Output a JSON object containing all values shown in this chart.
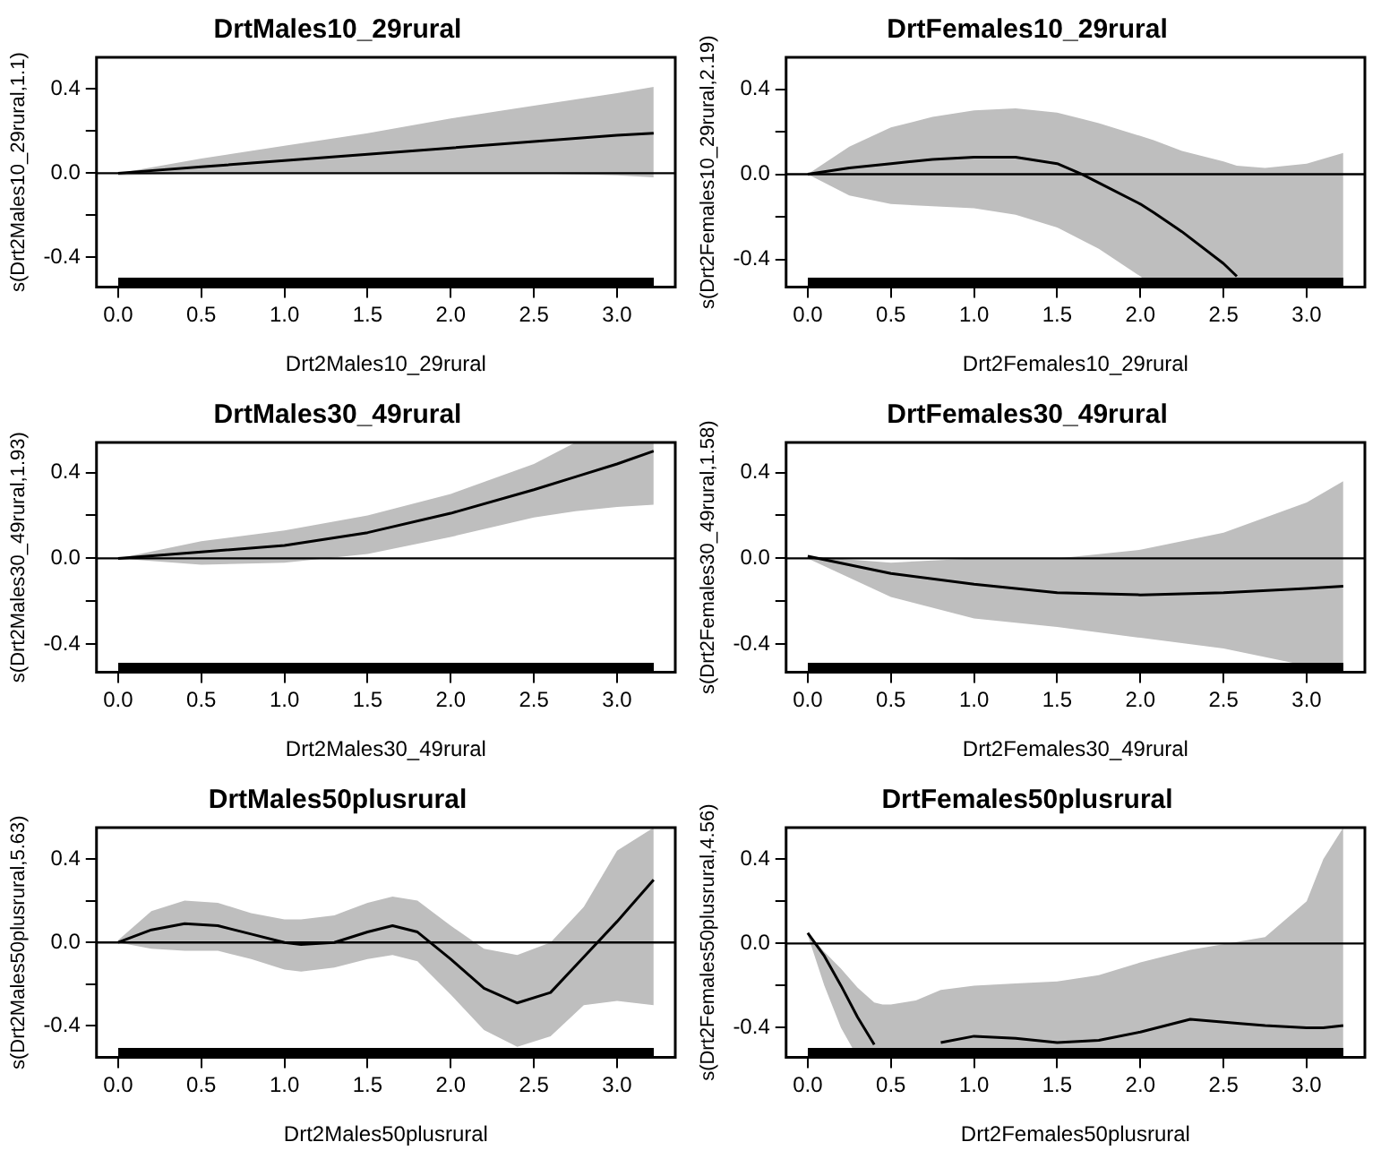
{
  "chart_data": [
    {
      "type": "line",
      "title": "DrtMales10_29rural",
      "xlabel": "Drt2Males10_29rural",
      "ylabel": "s(Drt2Males10_29rural,1.1)",
      "x": [
        0,
        0.5,
        1,
        1.5,
        2,
        2.5,
        3,
        3.22
      ],
      "series": [
        {
          "color": "#000000",
          "values": [
            0,
            0.03,
            0.06,
            0.09,
            0.12,
            0.15,
            0.18,
            0.19
          ],
          "upper": [
            0,
            0.07,
            0.13,
            0.19,
            0.26,
            0.32,
            0.38,
            0.41
          ],
          "lower": [
            -0.01,
            0,
            0,
            0,
            0,
            0,
            -0.01,
            -0.02
          ]
        }
      ],
      "xlim": [
        -0.13,
        3.35
      ],
      "ylim": [
        -0.54,
        0.55
      ],
      "xticks": [
        {
          "value": 0,
          "label": "0.0"
        },
        0.5,
        {
          "value": 1,
          "label": "1.0"
        },
        1.5,
        {
          "value": 2,
          "label": "2.0"
        },
        2.5,
        {
          "value": 3,
          "label": "3.0"
        }
      ],
      "yticks": [
        {
          "value": -0.4,
          "label": "-0.4"
        },
        {
          "value": -0.2,
          "label": null
        },
        {
          "value": 0,
          "label": "0.0"
        },
        {
          "value": 0.2,
          "label": null
        },
        {
          "value": 0.4,
          "label": "0.4"
        }
      ],
      "ref_lines": [
        {
          "axis": "y",
          "value": 0,
          "color": "#000000"
        }
      ],
      "grid": false,
      "legend": false,
      "marker": "none",
      "line_style": "solid"
    },
    {
      "type": "line",
      "title": "DrtFemales10_29rural",
      "xlabel": "Drt2Females10_29rural",
      "ylabel": "s(Drt2Females10_29rural,2.19)",
      "x": [
        0,
        0.25,
        0.5,
        0.75,
        1,
        1.25,
        1.5,
        1.65,
        1.75,
        2,
        2.08,
        2.25,
        2.5,
        2.58,
        2.75,
        3,
        3.22
      ],
      "series": [
        {
          "color": "#000000",
          "values": [
            0,
            0.03,
            0.05,
            0.07,
            0.08,
            0.08,
            0.05,
            0,
            -0.04,
            -0.14,
            -0.18,
            -0.27,
            -0.42,
            -0.48,
            null,
            null,
            null
          ],
          "upper": [
            0,
            0.13,
            0.22,
            0.27,
            0.3,
            0.31,
            0.29,
            0.26,
            0.24,
            0.18,
            0.16,
            0.11,
            0.06,
            0.04,
            0.03,
            0.05,
            0.1
          ],
          "lower": [
            0,
            -0.1,
            -0.14,
            -0.15,
            -0.16,
            -0.19,
            -0.25,
            -0.31,
            -0.35,
            -0.48,
            -0.53,
            -0.53,
            -0.53,
            -0.53,
            -0.53,
            -0.53,
            -0.53
          ]
        }
      ],
      "xlim": [
        -0.13,
        3.35
      ],
      "ylim": [
        -0.53,
        0.55
      ],
      "xticks": [
        {
          "value": 0,
          "label": "0.0"
        },
        0.5,
        {
          "value": 1,
          "label": "1.0"
        },
        1.5,
        {
          "value": 2,
          "label": "2.0"
        },
        2.5,
        {
          "value": 3,
          "label": "3.0"
        }
      ],
      "yticks": [
        {
          "value": -0.4,
          "label": "-0.4"
        },
        {
          "value": -0.2,
          "label": null
        },
        {
          "value": 0,
          "label": "0.0"
        },
        {
          "value": 0.2,
          "label": null
        },
        {
          "value": 0.4,
          "label": "0.4"
        }
      ],
      "ref_lines": [
        {
          "axis": "y",
          "value": 0,
          "color": "#000000"
        }
      ],
      "grid": false,
      "legend": false,
      "marker": "none",
      "line_style": "solid"
    },
    {
      "type": "line",
      "title": "DrtMales30_49rural",
      "xlabel": "Drt2Males30_49rural",
      "ylabel": "s(Drt2Males30_49rural,1.93)",
      "x": [
        0,
        0.5,
        1,
        1.5,
        2,
        2.5,
        2.75,
        3,
        3.22
      ],
      "series": [
        {
          "color": "#000000",
          "values": [
            0,
            0.03,
            0.06,
            0.12,
            0.21,
            0.32,
            0.38,
            0.44,
            0.5
          ],
          "upper": [
            0,
            0.08,
            0.13,
            0.2,
            0.3,
            0.44,
            0.54,
            0.54,
            0.54
          ],
          "lower": [
            0,
            -0.03,
            -0.02,
            0.02,
            0.1,
            0.19,
            0.22,
            0.24,
            0.25
          ]
        }
      ],
      "xlim": [
        -0.13,
        3.35
      ],
      "ylim": [
        -0.53,
        0.54
      ],
      "xticks": [
        {
          "value": 0,
          "label": "0.0"
        },
        0.5,
        {
          "value": 1,
          "label": "1.0"
        },
        1.5,
        {
          "value": 2,
          "label": "2.0"
        },
        2.5,
        {
          "value": 3,
          "label": "3.0"
        }
      ],
      "yticks": [
        {
          "value": -0.4,
          "label": "-0.4"
        },
        {
          "value": -0.2,
          "label": null
        },
        {
          "value": 0,
          "label": "0.0"
        },
        {
          "value": 0.2,
          "label": null
        },
        {
          "value": 0.4,
          "label": "0.4"
        }
      ],
      "ref_lines": [
        {
          "axis": "y",
          "value": 0,
          "color": "#000000"
        }
      ],
      "grid": false,
      "legend": false,
      "marker": "none",
      "line_style": "solid"
    },
    {
      "type": "line",
      "title": "DrtFemales30_49rural",
      "xlabel": "Drt2Females30_49rural",
      "ylabel": "s(Drt2Females30_49rural,1.58)",
      "x": [
        0,
        0.5,
        1,
        1.5,
        2,
        2.5,
        3,
        3.22
      ],
      "series": [
        {
          "color": "#000000",
          "values": [
            0.01,
            -0.07,
            -0.12,
            -0.16,
            -0.17,
            -0.16,
            -0.14,
            -0.13
          ],
          "upper": [
            0.01,
            -0.02,
            0,
            0,
            0.04,
            0.12,
            0.26,
            0.36
          ],
          "lower": [
            0,
            -0.18,
            -0.28,
            -0.32,
            -0.37,
            -0.42,
            -0.5,
            -0.53
          ]
        }
      ],
      "xlim": [
        -0.13,
        3.35
      ],
      "ylim": [
        -0.53,
        0.54
      ],
      "xticks": [
        {
          "value": 0,
          "label": "0.0"
        },
        0.5,
        {
          "value": 1,
          "label": "1.0"
        },
        1.5,
        {
          "value": 2,
          "label": "2.0"
        },
        2.5,
        {
          "value": 3,
          "label": "3.0"
        }
      ],
      "yticks": [
        {
          "value": -0.4,
          "label": "-0.4"
        },
        {
          "value": -0.2,
          "label": null
        },
        {
          "value": 0,
          "label": "0.0"
        },
        {
          "value": 0.2,
          "label": null
        },
        {
          "value": 0.4,
          "label": "0.4"
        }
      ],
      "ref_lines": [
        {
          "axis": "y",
          "value": 0,
          "color": "#000000"
        }
      ],
      "grid": false,
      "legend": false,
      "marker": "none",
      "line_style": "solid"
    },
    {
      "type": "line",
      "title": "DrtMales50plusrural",
      "xlabel": "Drt2Males50plusrural",
      "ylabel": "s(Drt2Males50plusrural,5.63)",
      "x": [
        0,
        0.2,
        0.4,
        0.6,
        0.8,
        1,
        1.1,
        1.3,
        1.5,
        1.65,
        1.8,
        2,
        2.2,
        2.4,
        2.6,
        2.8,
        3,
        3.22
      ],
      "series": [
        {
          "color": "#000000",
          "values": [
            0,
            0.06,
            0.09,
            0.08,
            0.04,
            0,
            -0.01,
            0,
            0.05,
            0.08,
            0.05,
            -0.08,
            -0.22,
            -0.29,
            -0.24,
            -0.07,
            0.1,
            0.3
          ],
          "upper": [
            0.01,
            0.15,
            0.2,
            0.19,
            0.14,
            0.11,
            0.11,
            0.13,
            0.19,
            0.22,
            0.2,
            0.08,
            -0.03,
            -0.06,
            0,
            0.17,
            0.44,
            0.55
          ],
          "lower": [
            0,
            -0.03,
            -0.04,
            -0.04,
            -0.08,
            -0.13,
            -0.14,
            -0.12,
            -0.08,
            -0.06,
            -0.09,
            -0.25,
            -0.42,
            -0.5,
            -0.45,
            -0.3,
            -0.28,
            -0.3
          ]
        }
      ],
      "xlim": [
        -0.13,
        3.35
      ],
      "ylim": [
        -0.55,
        0.55
      ],
      "xticks": [
        {
          "value": 0,
          "label": "0.0"
        },
        0.5,
        {
          "value": 1,
          "label": "1.0"
        },
        1.5,
        {
          "value": 2,
          "label": "2.0"
        },
        2.5,
        {
          "value": 3,
          "label": "3.0"
        }
      ],
      "yticks": [
        {
          "value": -0.4,
          "label": "-0.4"
        },
        {
          "value": -0.2,
          "label": null
        },
        {
          "value": 0,
          "label": "0.0"
        },
        {
          "value": 0.2,
          "label": null
        },
        {
          "value": 0.4,
          "label": "0.4"
        }
      ],
      "ref_lines": [
        {
          "axis": "y",
          "value": 0,
          "color": "#000000"
        }
      ],
      "grid": false,
      "legend": false,
      "marker": "none",
      "line_style": "solid"
    },
    {
      "type": "line",
      "title": "DrtFemales50plusrural",
      "xlabel": "Drt2Females50plusrural",
      "ylabel": "s(Drt2Females50plusrural,4.56)",
      "x": [
        0,
        0.1,
        0.2,
        0.3,
        0.4,
        0.45,
        0.5,
        0.65,
        0.8,
        1,
        1.25,
        1.5,
        1.75,
        2,
        2.3,
        2.6,
        2.75,
        3,
        3.1,
        3.22
      ],
      "series": [
        {
          "color": "#000000",
          "values": [
            0.05,
            -0.06,
            -0.2,
            -0.35,
            -0.48,
            null,
            null,
            null,
            -0.47,
            -0.44,
            -0.45,
            -0.47,
            -0.46,
            -0.42,
            -0.36,
            -0.38,
            -0.39,
            -0.4,
            -0.4,
            -0.39
          ],
          "upper": [
            0.05,
            -0.04,
            -0.12,
            -0.21,
            -0.28,
            -0.29,
            -0.29,
            -0.27,
            -0.22,
            -0.2,
            -0.19,
            -0.18,
            -0.15,
            -0.09,
            -0.03,
            0.01,
            0.03,
            0.2,
            0.4,
            0.55
          ],
          "lower": [
            0.04,
            -0.2,
            -0.4,
            -0.54,
            -0.54,
            -0.54,
            -0.54,
            -0.54,
            -0.54,
            -0.54,
            -0.54,
            -0.54,
            -0.54,
            -0.54,
            -0.54,
            -0.54,
            -0.54,
            -0.54,
            -0.54,
            -0.54
          ]
        }
      ],
      "xlim": [
        -0.13,
        3.35
      ],
      "ylim": [
        -0.54,
        0.55
      ],
      "xticks": [
        {
          "value": 0,
          "label": "0.0"
        },
        0.5,
        {
          "value": 1,
          "label": "1.0"
        },
        1.5,
        {
          "value": 2,
          "label": "2.0"
        },
        2.5,
        {
          "value": 3,
          "label": "3.0"
        }
      ],
      "yticks": [
        {
          "value": -0.4,
          "label": "-0.4"
        },
        {
          "value": -0.2,
          "label": null
        },
        {
          "value": 0,
          "label": "0.0"
        },
        {
          "value": 0.2,
          "label": null
        },
        {
          "value": 0.4,
          "label": "0.4"
        }
      ],
      "ref_lines": [
        {
          "axis": "y",
          "value": 0,
          "color": "#000000"
        }
      ],
      "grid": false,
      "legend": false,
      "marker": "none",
      "line_style": "solid"
    }
  ]
}
